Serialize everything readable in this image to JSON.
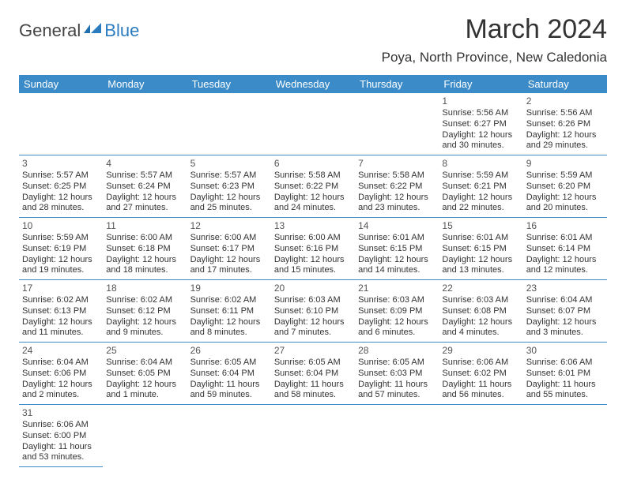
{
  "brand": {
    "part1": "General",
    "part2": "Blue"
  },
  "title": "March 2024",
  "location": "Poya, North Province, New Caledonia",
  "colors": {
    "header_bg": "#3b8bc8",
    "header_text": "#ffffff",
    "rule": "#3b8bc8",
    "brand_blue": "#2b7bbf",
    "text": "#333333",
    "background": "#ffffff"
  },
  "typography": {
    "title_fontsize": 34,
    "location_fontsize": 17,
    "header_fontsize": 13,
    "cell_fontsize": 11,
    "daynum_fontsize": 12
  },
  "weekdays": [
    "Sunday",
    "Monday",
    "Tuesday",
    "Wednesday",
    "Thursday",
    "Friday",
    "Saturday"
  ],
  "weeks": [
    [
      null,
      null,
      null,
      null,
      null,
      {
        "n": "1",
        "l1": "Sunrise: 5:56 AM",
        "l2": "Sunset: 6:27 PM",
        "l3": "Daylight: 12 hours",
        "l4": "and 30 minutes."
      },
      {
        "n": "2",
        "l1": "Sunrise: 5:56 AM",
        "l2": "Sunset: 6:26 PM",
        "l3": "Daylight: 12 hours",
        "l4": "and 29 minutes."
      }
    ],
    [
      {
        "n": "3",
        "l1": "Sunrise: 5:57 AM",
        "l2": "Sunset: 6:25 PM",
        "l3": "Daylight: 12 hours",
        "l4": "and 28 minutes."
      },
      {
        "n": "4",
        "l1": "Sunrise: 5:57 AM",
        "l2": "Sunset: 6:24 PM",
        "l3": "Daylight: 12 hours",
        "l4": "and 27 minutes."
      },
      {
        "n": "5",
        "l1": "Sunrise: 5:57 AM",
        "l2": "Sunset: 6:23 PM",
        "l3": "Daylight: 12 hours",
        "l4": "and 25 minutes."
      },
      {
        "n": "6",
        "l1": "Sunrise: 5:58 AM",
        "l2": "Sunset: 6:22 PM",
        "l3": "Daylight: 12 hours",
        "l4": "and 24 minutes."
      },
      {
        "n": "7",
        "l1": "Sunrise: 5:58 AM",
        "l2": "Sunset: 6:22 PM",
        "l3": "Daylight: 12 hours",
        "l4": "and 23 minutes."
      },
      {
        "n": "8",
        "l1": "Sunrise: 5:59 AM",
        "l2": "Sunset: 6:21 PM",
        "l3": "Daylight: 12 hours",
        "l4": "and 22 minutes."
      },
      {
        "n": "9",
        "l1": "Sunrise: 5:59 AM",
        "l2": "Sunset: 6:20 PM",
        "l3": "Daylight: 12 hours",
        "l4": "and 20 minutes."
      }
    ],
    [
      {
        "n": "10",
        "l1": "Sunrise: 5:59 AM",
        "l2": "Sunset: 6:19 PM",
        "l3": "Daylight: 12 hours",
        "l4": "and 19 minutes."
      },
      {
        "n": "11",
        "l1": "Sunrise: 6:00 AM",
        "l2": "Sunset: 6:18 PM",
        "l3": "Daylight: 12 hours",
        "l4": "and 18 minutes."
      },
      {
        "n": "12",
        "l1": "Sunrise: 6:00 AM",
        "l2": "Sunset: 6:17 PM",
        "l3": "Daylight: 12 hours",
        "l4": "and 17 minutes."
      },
      {
        "n": "13",
        "l1": "Sunrise: 6:00 AM",
        "l2": "Sunset: 6:16 PM",
        "l3": "Daylight: 12 hours",
        "l4": "and 15 minutes."
      },
      {
        "n": "14",
        "l1": "Sunrise: 6:01 AM",
        "l2": "Sunset: 6:15 PM",
        "l3": "Daylight: 12 hours",
        "l4": "and 14 minutes."
      },
      {
        "n": "15",
        "l1": "Sunrise: 6:01 AM",
        "l2": "Sunset: 6:15 PM",
        "l3": "Daylight: 12 hours",
        "l4": "and 13 minutes."
      },
      {
        "n": "16",
        "l1": "Sunrise: 6:01 AM",
        "l2": "Sunset: 6:14 PM",
        "l3": "Daylight: 12 hours",
        "l4": "and 12 minutes."
      }
    ],
    [
      {
        "n": "17",
        "l1": "Sunrise: 6:02 AM",
        "l2": "Sunset: 6:13 PM",
        "l3": "Daylight: 12 hours",
        "l4": "and 11 minutes."
      },
      {
        "n": "18",
        "l1": "Sunrise: 6:02 AM",
        "l2": "Sunset: 6:12 PM",
        "l3": "Daylight: 12 hours",
        "l4": "and 9 minutes."
      },
      {
        "n": "19",
        "l1": "Sunrise: 6:02 AM",
        "l2": "Sunset: 6:11 PM",
        "l3": "Daylight: 12 hours",
        "l4": "and 8 minutes."
      },
      {
        "n": "20",
        "l1": "Sunrise: 6:03 AM",
        "l2": "Sunset: 6:10 PM",
        "l3": "Daylight: 12 hours",
        "l4": "and 7 minutes."
      },
      {
        "n": "21",
        "l1": "Sunrise: 6:03 AM",
        "l2": "Sunset: 6:09 PM",
        "l3": "Daylight: 12 hours",
        "l4": "and 6 minutes."
      },
      {
        "n": "22",
        "l1": "Sunrise: 6:03 AM",
        "l2": "Sunset: 6:08 PM",
        "l3": "Daylight: 12 hours",
        "l4": "and 4 minutes."
      },
      {
        "n": "23",
        "l1": "Sunrise: 6:04 AM",
        "l2": "Sunset: 6:07 PM",
        "l3": "Daylight: 12 hours",
        "l4": "and 3 minutes."
      }
    ],
    [
      {
        "n": "24",
        "l1": "Sunrise: 6:04 AM",
        "l2": "Sunset: 6:06 PM",
        "l3": "Daylight: 12 hours",
        "l4": "and 2 minutes."
      },
      {
        "n": "25",
        "l1": "Sunrise: 6:04 AM",
        "l2": "Sunset: 6:05 PM",
        "l3": "Daylight: 12 hours",
        "l4": "and 1 minute."
      },
      {
        "n": "26",
        "l1": "Sunrise: 6:05 AM",
        "l2": "Sunset: 6:04 PM",
        "l3": "Daylight: 11 hours",
        "l4": "and 59 minutes."
      },
      {
        "n": "27",
        "l1": "Sunrise: 6:05 AM",
        "l2": "Sunset: 6:04 PM",
        "l3": "Daylight: 11 hours",
        "l4": "and 58 minutes."
      },
      {
        "n": "28",
        "l1": "Sunrise: 6:05 AM",
        "l2": "Sunset: 6:03 PM",
        "l3": "Daylight: 11 hours",
        "l4": "and 57 minutes."
      },
      {
        "n": "29",
        "l1": "Sunrise: 6:06 AM",
        "l2": "Sunset: 6:02 PM",
        "l3": "Daylight: 11 hours",
        "l4": "and 56 minutes."
      },
      {
        "n": "30",
        "l1": "Sunrise: 6:06 AM",
        "l2": "Sunset: 6:01 PM",
        "l3": "Daylight: 11 hours",
        "l4": "and 55 minutes."
      }
    ],
    [
      {
        "n": "31",
        "l1": "Sunrise: 6:06 AM",
        "l2": "Sunset: 6:00 PM",
        "l3": "Daylight: 11 hours",
        "l4": "and 53 minutes."
      },
      null,
      null,
      null,
      null,
      null,
      null
    ]
  ]
}
